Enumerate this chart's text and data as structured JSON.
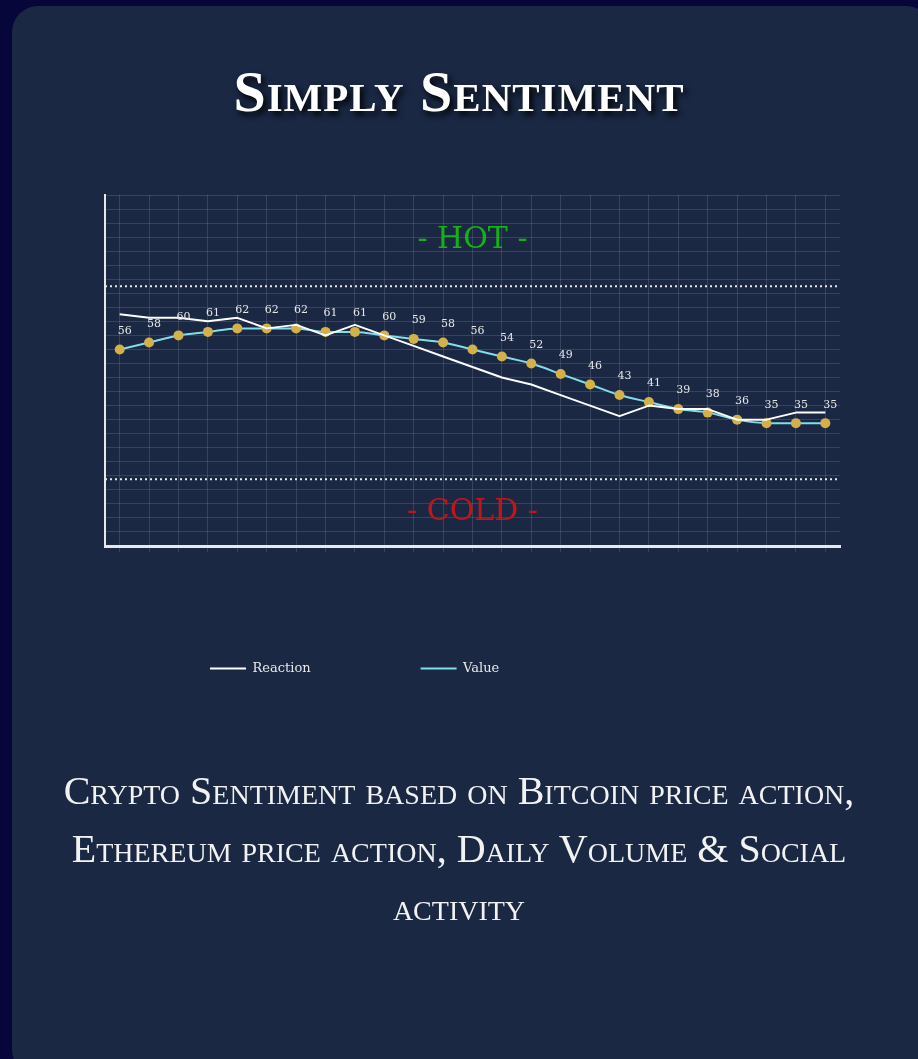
{
  "chart_data": {
    "type": "line",
    "title": "Simply Sentiment",
    "categories": [
      null,
      null,
      null,
      null,
      null,
      null,
      null,
      null,
      null,
      null,
      null,
      null,
      null,
      null,
      null,
      null,
      null,
      null,
      null,
      null,
      null,
      null,
      null,
      null,
      null
    ],
    "series": [
      {
        "name": "Reaction",
        "color": "#ffffff",
        "marker": "none",
        "values": [
          66,
          65,
          65,
          64,
          65,
          62,
          63,
          60,
          63,
          60,
          57,
          54,
          51,
          48,
          46,
          43,
          40,
          37,
          40,
          39,
          39,
          36,
          36,
          38,
          38
        ]
      },
      {
        "name": "Value",
        "color": "#80deea",
        "marker": "circle",
        "colors": [
          "#d4b04a",
          "#d4b04a",
          "#d4b04a",
          "#d4b04a",
          "#d4b04a",
          "#d4b04a",
          "#d4b04a",
          "#d4b04a",
          "#d4b04a",
          "#d4b04a",
          "#d4b04a",
          "#d4b04a",
          "#d4b04a",
          "#d4b04a",
          "#d4b04a",
          "#d4b04a",
          "#d4b04a",
          "#d4b04a",
          "#d4b04a",
          "#d4b04a",
          "#d4b04a",
          "#d4b04a",
          "#d4b04a",
          "#d4b04a",
          "#d4b04a"
        ],
        "values": [
          56,
          58,
          60,
          61,
          62,
          62,
          62,
          61,
          61,
          60,
          59,
          58,
          56,
          54,
          52,
          49,
          46,
          43,
          41,
          39,
          38,
          36,
          35,
          35,
          35
        ],
        "value_labels": [
          "56",
          "58",
          "60",
          "61",
          "62",
          "62",
          "62",
          "61",
          "61",
          "60",
          "59",
          "58",
          "56",
          "54",
          "52",
          "49",
          "46",
          "43",
          "41",
          "39",
          "38",
          "36",
          "35",
          "35",
          "35"
        ]
      }
    ],
    "ylim": [
      0,
      100
    ],
    "yticks": [
      {
        "value": 0,
        "label": null
      },
      {
        "value": 4,
        "label": null
      },
      {
        "value": 8,
        "label": null
      },
      {
        "value": 12,
        "label": null
      },
      {
        "value": 16,
        "label": null
      },
      {
        "value": 20,
        "label": null
      },
      {
        "value": 24,
        "label": null
      },
      {
        "value": 28,
        "label": null
      },
      {
        "value": 32,
        "label": null
      },
      {
        "value": 36,
        "label": null
      },
      {
        "value": 40,
        "label": null
      },
      {
        "value": 44,
        "label": null
      },
      {
        "value": 48,
        "label": null
      },
      {
        "value": 52,
        "label": null
      },
      {
        "value": 56,
        "label": null
      },
      {
        "value": 60,
        "label": null
      },
      {
        "value": 64,
        "label": null
      },
      {
        "value": 68,
        "label": null
      },
      {
        "value": 72,
        "label": null
      },
      {
        "value": 76,
        "label": null
      },
      {
        "value": 80,
        "label": null
      },
      {
        "value": 84,
        "label": null
      },
      {
        "value": 88,
        "label": null
      },
      {
        "value": 92,
        "label": null
      },
      {
        "value": 96,
        "label": null
      },
      {
        "value": 100,
        "label": null
      }
    ],
    "tick_labels": false,
    "ref_lines": [
      {
        "axis": "y",
        "value": 74,
        "label": "- HOT -",
        "color": "#e8e8e8",
        "line_style": "dotted"
      },
      {
        "axis": "y",
        "value": 19,
        "label": "- COLD -",
        "color": "#e8e8e8",
        "line_style": "dotted"
      }
    ],
    "grid": true,
    "legend": "bottom",
    "line_style": "solid",
    "annotations": [
      "Crypto Sentiment based on Bitcoin price action, Ethereum price action, Daily Volume & Social activity"
    ]
  }
}
